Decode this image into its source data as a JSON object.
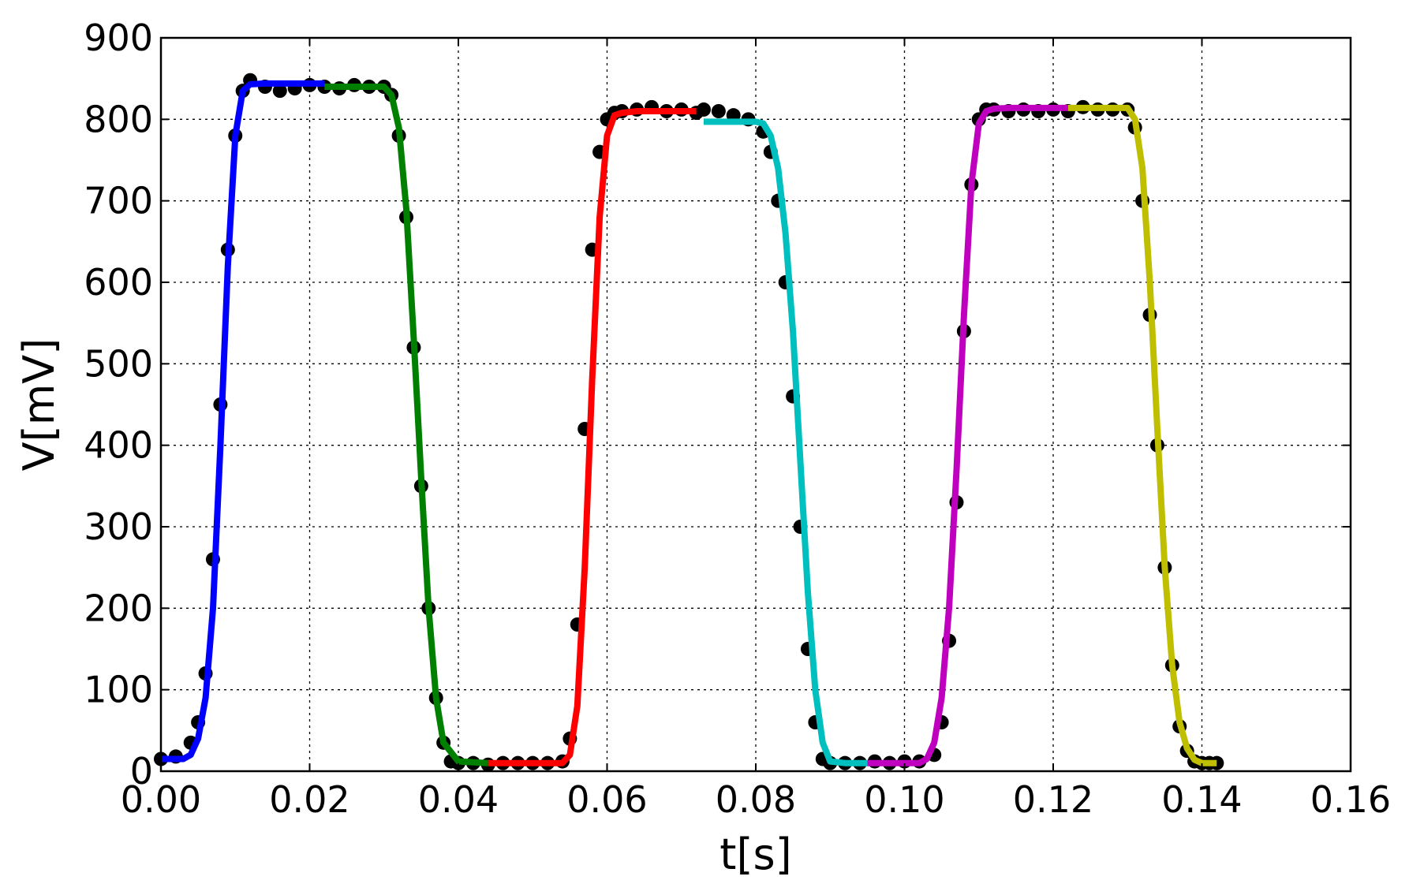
{
  "chart_data": {
    "type": "line",
    "title": "",
    "xlabel": "t[s]",
    "ylabel": "V[mV]",
    "xlim": [
      0.0,
      0.16
    ],
    "ylim": [
      0,
      900
    ],
    "grid": true,
    "x_ticks": [
      0.0,
      0.02,
      0.04,
      0.06,
      0.08,
      0.1,
      0.12,
      0.14,
      0.16
    ],
    "x_tick_labels": [
      "0.00",
      "0.02",
      "0.04",
      "0.06",
      "0.08",
      "0.10",
      "0.12",
      "0.14",
      "0.16"
    ],
    "y_ticks": [
      0,
      100,
      200,
      300,
      400,
      500,
      600,
      700,
      800,
      900
    ],
    "y_tick_labels": [
      "0",
      "100",
      "200",
      "300",
      "400",
      "500",
      "600",
      "700",
      "800",
      "900"
    ],
    "scatter": {
      "color": "#000000",
      "x": [
        0.0,
        0.002,
        0.004,
        0.005,
        0.006,
        0.007,
        0.008,
        0.009,
        0.01,
        0.011,
        0.012,
        0.014,
        0.016,
        0.018,
        0.02,
        0.022,
        0.024,
        0.026,
        0.028,
        0.03,
        0.031,
        0.032,
        0.033,
        0.034,
        0.035,
        0.036,
        0.037,
        0.038,
        0.039,
        0.04,
        0.042,
        0.044,
        0.046,
        0.048,
        0.05,
        0.052,
        0.054,
        0.055,
        0.056,
        0.057,
        0.058,
        0.059,
        0.06,
        0.061,
        0.062,
        0.064,
        0.066,
        0.068,
        0.07,
        0.072,
        0.073,
        0.075,
        0.077,
        0.079,
        0.081,
        0.082,
        0.083,
        0.084,
        0.085,
        0.086,
        0.087,
        0.088,
        0.089,
        0.09,
        0.092,
        0.094,
        0.096,
        0.098,
        0.1,
        0.102,
        0.104,
        0.105,
        0.106,
        0.107,
        0.108,
        0.109,
        0.11,
        0.111,
        0.112,
        0.114,
        0.116,
        0.118,
        0.12,
        0.122,
        0.124,
        0.126,
        0.128,
        0.13,
        0.131,
        0.132,
        0.133,
        0.134,
        0.135,
        0.136,
        0.137,
        0.138,
        0.139,
        0.14,
        0.141,
        0.142
      ],
      "y": [
        15,
        18,
        35,
        60,
        120,
        260,
        450,
        640,
        780,
        835,
        848,
        840,
        835,
        838,
        842,
        840,
        838,
        842,
        840,
        840,
        830,
        780,
        680,
        520,
        350,
        200,
        90,
        35,
        12,
        10,
        10,
        8,
        10,
        10,
        10,
        10,
        12,
        40,
        180,
        420,
        640,
        760,
        800,
        808,
        810,
        812,
        815,
        810,
        812,
        808,
        812,
        810,
        805,
        800,
        785,
        760,
        700,
        600,
        460,
        300,
        150,
        60,
        15,
        10,
        10,
        10,
        12,
        10,
        12,
        12,
        20,
        60,
        160,
        330,
        540,
        720,
        800,
        812,
        812,
        810,
        812,
        810,
        812,
        810,
        815,
        812,
        812,
        812,
        790,
        700,
        560,
        400,
        250,
        130,
        55,
        25,
        12,
        10,
        10,
        10
      ]
    },
    "series": [
      {
        "color": "#0000ff",
        "x": [
          0.0,
          0.003,
          0.004,
          0.005,
          0.006,
          0.007,
          0.008,
          0.009,
          0.01,
          0.011,
          0.012,
          0.014,
          0.022
        ],
        "y": [
          15,
          15,
          20,
          40,
          90,
          200,
          400,
          620,
          780,
          835,
          843,
          844,
          844
        ]
      },
      {
        "color": "#008000",
        "x": [
          0.022,
          0.03,
          0.031,
          0.032,
          0.033,
          0.034,
          0.035,
          0.036,
          0.037,
          0.038,
          0.04,
          0.044
        ],
        "y": [
          840,
          840,
          830,
          790,
          690,
          530,
          360,
          200,
          90,
          35,
          12,
          10
        ]
      },
      {
        "color": "#ff0000",
        "x": [
          0.044,
          0.054,
          0.055,
          0.056,
          0.057,
          0.058,
          0.059,
          0.06,
          0.061,
          0.062,
          0.064,
          0.072
        ],
        "y": [
          10,
          10,
          20,
          80,
          250,
          480,
          680,
          780,
          805,
          808,
          810,
          810
        ]
      },
      {
        "color": "#00bfbf",
        "x": [
          0.073,
          0.08,
          0.081,
          0.082,
          0.083,
          0.084,
          0.085,
          0.086,
          0.087,
          0.088,
          0.089,
          0.09,
          0.092,
          0.095
        ],
        "y": [
          797,
          797,
          795,
          780,
          740,
          660,
          540,
          380,
          220,
          100,
          35,
          12,
          10,
          10
        ]
      },
      {
        "color": "#bf00bf",
        "x": [
          0.095,
          0.102,
          0.103,
          0.104,
          0.105,
          0.106,
          0.107,
          0.108,
          0.109,
          0.11,
          0.111,
          0.112,
          0.114,
          0.122
        ],
        "y": [
          10,
          10,
          15,
          35,
          90,
          200,
          370,
          560,
          720,
          795,
          810,
          813,
          814,
          814
        ]
      },
      {
        "color": "#bfbf00",
        "x": [
          0.122,
          0.13,
          0.131,
          0.132,
          0.133,
          0.134,
          0.135,
          0.136,
          0.137,
          0.138,
          0.139,
          0.14,
          0.141,
          0.142
        ],
        "y": [
          814,
          814,
          800,
          740,
          600,
          420,
          250,
          130,
          60,
          28,
          14,
          10,
          10,
          10
        ]
      }
    ]
  }
}
